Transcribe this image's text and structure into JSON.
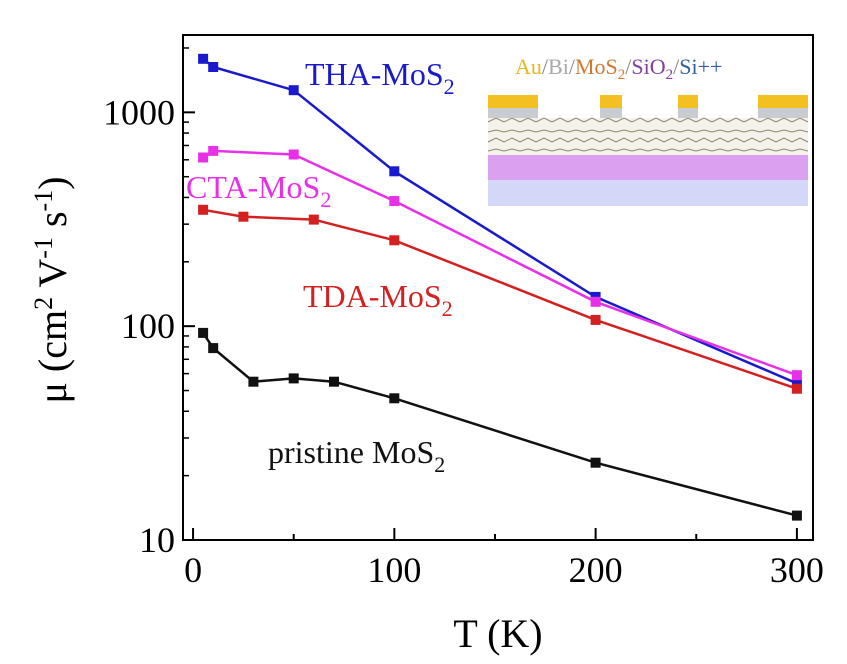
{
  "chart_data": {
    "type": "line",
    "title": "",
    "xlabel": "T (K)",
    "ylabel": {
      "main": "μ (cm",
      "sup1": "2",
      "mid": " V",
      "sup2": "-1",
      "mid2": " s",
      "sup3": "-1",
      "end": ")"
    },
    "xlim": [
      -5,
      308
    ],
    "ylim": [
      10,
      2300
    ],
    "yscale": "log",
    "grid": false,
    "xticks": [
      {
        "value": 0,
        "label": "0"
      },
      {
        "value": 100,
        "label": "100"
      },
      {
        "value": 200,
        "label": "200"
      },
      {
        "value": 300,
        "label": "300"
      }
    ],
    "yticks": [
      {
        "value": 10,
        "label": "10"
      },
      {
        "value": 100,
        "label": "100"
      },
      {
        "value": 1000,
        "label": "1000"
      }
    ],
    "series": [
      {
        "name": "THA-MoS",
        "sub": "2",
        "color": "#1a1acc",
        "x": [
          5,
          10,
          50,
          100,
          200,
          300
        ],
        "y": [
          1780,
          1630,
          1270,
          530,
          137,
          54
        ]
      },
      {
        "name": "CTA-MoS",
        "sub": "2",
        "color": "#e830e8",
        "x": [
          5,
          10,
          50,
          100,
          200,
          300
        ],
        "y": [
          615,
          660,
          635,
          385,
          130,
          59
        ]
      },
      {
        "name": "TDA-MoS",
        "sub": "2",
        "color": "#d42020",
        "x": [
          5,
          25,
          60,
          100,
          200,
          300
        ],
        "y": [
          350,
          325,
          315,
          252,
          107,
          51
        ]
      },
      {
        "name": "pristine MoS",
        "sub": "2",
        "color": "#111111",
        "x": [
          5,
          10,
          30,
          50,
          70,
          100,
          200,
          300
        ],
        "y": [
          93,
          79,
          55,
          57,
          55,
          46,
          23,
          13
        ]
      }
    ],
    "inset": {
      "title_parts": [
        {
          "text": "Au",
          "color": "#e8b820"
        },
        {
          "text": "/",
          "color": "#888888"
        },
        {
          "text": "Bi",
          "color": "#a8a8a8"
        },
        {
          "text": "/",
          "color": "#888888"
        },
        {
          "text": "MoS",
          "color": "#d07830"
        },
        {
          "text": "2",
          "color": "#d07830",
          "sub": true
        },
        {
          "text": "/",
          "color": "#888888"
        },
        {
          "text": "SiO",
          "color": "#8040a0"
        },
        {
          "text": "2",
          "color": "#8040a0",
          "sub": true
        },
        {
          "text": "/",
          "color": "#888888"
        },
        {
          "text": "Si++",
          "color": "#3060a0"
        }
      ],
      "layer_colors": {
        "gold": "#f2c020",
        "bismuth": "#c8ccd0",
        "mos2": "#bfb89a",
        "sio2": "#dba0f0",
        "si": "#d4d8f8"
      }
    }
  }
}
